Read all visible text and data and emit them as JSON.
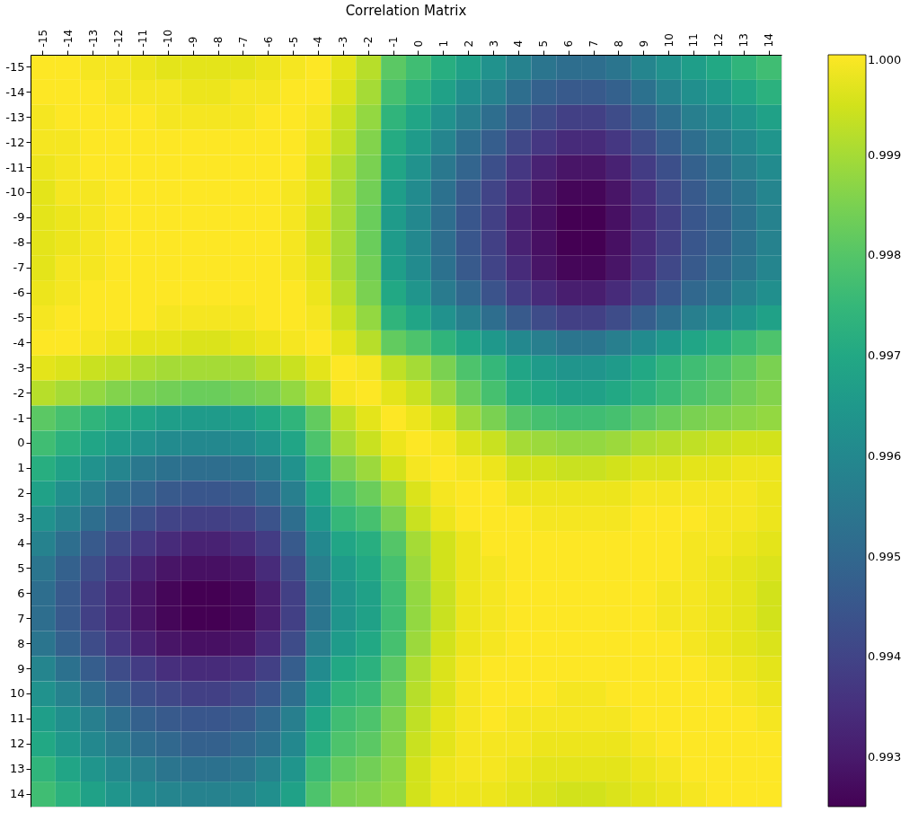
{
  "chart_data": {
    "type": "heatmap",
    "title": "Correlation Matrix",
    "categories": [
      "-15",
      "-14",
      "-13",
      "-12",
      "-11",
      "-10",
      "-9",
      "-8",
      "-7",
      "-6",
      "-5",
      "-4",
      "-3",
      "-2",
      "-1",
      "0",
      "1",
      "2",
      "3",
      "4",
      "5",
      "6",
      "7",
      "8",
      "9",
      "10",
      "11",
      "12",
      "13",
      "14"
    ],
    "y_categories": [
      "-15",
      "-14",
      "-13",
      "-12",
      "-11",
      "-10",
      "-9",
      "-8",
      "-7",
      "-6",
      "-5",
      "-4",
      "-3",
      "-2",
      "-1",
      "0",
      "1",
      "2",
      "3",
      "4",
      "5",
      "6",
      "7",
      "8",
      "9",
      "10",
      "11",
      "12",
      "13",
      "14"
    ],
    "clim": [
      0.99251,
      1.0
    ],
    "cticks": [
      0.993,
      0.994,
      0.995,
      0.996,
      0.997,
      0.998,
      0.999,
      {
        "value": 1.0,
        "label": "1.000"
      }
    ],
    "cells": [
      [
        1.0,
        1.0,
        0.9999,
        0.9999,
        0.9998,
        0.9997,
        0.9997,
        0.9997,
        0.9997,
        0.9998,
        0.9999,
        1.0,
        0.9997,
        0.9992,
        0.9981,
        0.9977,
        0.9972,
        0.9968,
        0.9963,
        0.9958,
        0.9954,
        0.9952,
        0.9952,
        0.9954,
        0.9959,
        0.9963,
        0.9967,
        0.997,
        0.9974,
        0.9977
      ],
      [
        1.0,
        1.0,
        1.0,
        0.9999,
        0.9999,
        0.9999,
        0.9998,
        0.9998,
        0.9999,
        0.9999,
        1.0,
        1.0,
        0.9996,
        0.999,
        0.9978,
        0.9973,
        0.9968,
        0.9962,
        0.9958,
        0.9952,
        0.9948,
        0.9946,
        0.9946,
        0.9948,
        0.9953,
        0.9958,
        0.9962,
        0.9965,
        0.9969,
        0.9973
      ],
      [
        0.9999,
        1.0,
        1.0,
        1.0,
        1.0,
        0.9999,
        0.9999,
        0.9999,
        0.9999,
        1.0,
        1.0,
        0.9999,
        0.9994,
        0.9988,
        0.9974,
        0.9969,
        0.9963,
        0.9957,
        0.9952,
        0.9946,
        0.9942,
        0.9939,
        0.9939,
        0.9942,
        0.9947,
        0.9952,
        0.9957,
        0.996,
        0.9964,
        0.9968
      ],
      [
        0.9999,
        0.9999,
        1.0,
        1.0,
        1.0,
        1.0,
        1.0,
        1.0,
        1.0,
        1.0,
        1.0,
        0.9998,
        0.9993,
        0.9986,
        0.9971,
        0.9966,
        0.9959,
        0.9952,
        0.9947,
        0.9941,
        0.9937,
        0.9934,
        0.9934,
        0.9937,
        0.9942,
        0.9947,
        0.9952,
        0.9956,
        0.996,
        0.9964
      ],
      [
        0.9998,
        0.9999,
        1.0,
        1.0,
        1.0,
        1.0,
        1.0,
        1.0,
        1.0,
        1.0,
        1.0,
        0.9997,
        0.9991,
        0.9985,
        0.9969,
        0.9963,
        0.9955,
        0.9949,
        0.9943,
        0.9937,
        0.9932,
        0.9929,
        0.9929,
        0.9932,
        0.9938,
        0.9943,
        0.9948,
        0.9952,
        0.9957,
        0.9961
      ],
      [
        0.9997,
        0.9999,
        0.9999,
        1.0,
        1.0,
        1.0,
        1.0,
        1.0,
        1.0,
        1.0,
        0.9999,
        0.9997,
        0.999,
        0.9984,
        0.9967,
        0.9961,
        0.9953,
        0.9946,
        0.994,
        0.9934,
        0.9929,
        0.9926,
        0.9926,
        0.9929,
        0.9935,
        0.9941,
        0.9946,
        0.995,
        0.9954,
        0.9959
      ],
      [
        0.9997,
        0.9998,
        0.9999,
        1.0,
        1.0,
        1.0,
        1.0,
        1.0,
        1.0,
        1.0,
        0.9999,
        0.9996,
        0.999,
        0.9983,
        0.9966,
        0.996,
        0.9952,
        0.9945,
        0.9939,
        0.9932,
        0.9928,
        0.9925,
        0.9925,
        0.9928,
        0.9934,
        0.9939,
        0.9945,
        0.9948,
        0.9953,
        0.9958
      ],
      [
        0.9997,
        0.9998,
        0.9999,
        1.0,
        1.0,
        1.0,
        1.0,
        1.0,
        1.0,
        1.0,
        0.9999,
        0.9996,
        0.999,
        0.9983,
        0.9966,
        0.996,
        0.9952,
        0.9945,
        0.9939,
        0.9932,
        0.9928,
        0.9925,
        0.9925,
        0.9928,
        0.9934,
        0.9939,
        0.9945,
        0.9948,
        0.9953,
        0.9958
      ],
      [
        0.9997,
        0.9999,
        0.9999,
        1.0,
        1.0,
        1.0,
        1.0,
        1.0,
        1.0,
        1.0,
        0.9999,
        0.9997,
        0.999,
        0.9984,
        0.9967,
        0.9961,
        0.9953,
        0.9946,
        0.994,
        0.9934,
        0.9929,
        0.9926,
        0.9926,
        0.9929,
        0.9935,
        0.9941,
        0.9946,
        0.995,
        0.9954,
        0.9959
      ],
      [
        0.9998,
        0.9999,
        1.0,
        1.0,
        1.0,
        1.0,
        1.0,
        1.0,
        1.0,
        1.0,
        1.0,
        0.9998,
        0.9992,
        0.9985,
        0.997,
        0.9964,
        0.9956,
        0.995,
        0.9944,
        0.9938,
        0.9934,
        0.9931,
        0.9931,
        0.9934,
        0.9939,
        0.9945,
        0.995,
        0.9953,
        0.9958,
        0.9962
      ],
      [
        0.9999,
        1.0,
        1.0,
        1.0,
        1.0,
        0.9999,
        0.9999,
        0.9999,
        0.9999,
        1.0,
        1.0,
        0.9999,
        0.9994,
        0.9988,
        0.9974,
        0.9969,
        0.9963,
        0.9957,
        0.9952,
        0.9946,
        0.9942,
        0.9939,
        0.9939,
        0.9942,
        0.9947,
        0.9952,
        0.9957,
        0.996,
        0.9964,
        0.9968
      ],
      [
        1.0,
        1.0,
        0.9999,
        0.9998,
        0.9997,
        0.9997,
        0.9996,
        0.9996,
        0.9997,
        0.9998,
        0.9999,
        1.0,
        0.9997,
        0.9992,
        0.9982,
        0.9979,
        0.9974,
        0.9969,
        0.9965,
        0.996,
        0.9957,
        0.9954,
        0.9954,
        0.9957,
        0.9961,
        0.9965,
        0.9969,
        0.9972,
        0.9976,
        0.9979
      ],
      [
        0.9997,
        0.9996,
        0.9994,
        0.9993,
        0.9991,
        0.999,
        0.999,
        0.999,
        0.999,
        0.9992,
        0.9994,
        0.9997,
        1.0,
        0.9999,
        0.9993,
        0.999,
        0.9985,
        0.9979,
        0.9975,
        0.9969,
        0.9966,
        0.9964,
        0.9964,
        0.9966,
        0.997,
        0.9974,
        0.9977,
        0.9979,
        0.9982,
        0.9985
      ],
      [
        0.9992,
        0.999,
        0.9988,
        0.9986,
        0.9985,
        0.9984,
        0.9983,
        0.9983,
        0.9984,
        0.9985,
        0.9988,
        0.9992,
        0.9999,
        1.0,
        0.9997,
        0.9994,
        0.9989,
        0.9983,
        0.9978,
        0.9972,
        0.997,
        0.9968,
        0.9968,
        0.997,
        0.9973,
        0.9976,
        0.9979,
        0.9981,
        0.9984,
        0.9986
      ],
      [
        0.9981,
        0.9978,
        0.9974,
        0.9971,
        0.9969,
        0.9967,
        0.9966,
        0.9966,
        0.9967,
        0.997,
        0.9974,
        0.9982,
        0.9993,
        0.9997,
        1.0,
        0.9998,
        0.9995,
        0.9989,
        0.9985,
        0.998,
        0.9978,
        0.9977,
        0.9977,
        0.9978,
        0.9981,
        0.9983,
        0.9985,
        0.9986,
        0.9987,
        0.9988
      ],
      [
        0.9977,
        0.9973,
        0.9969,
        0.9966,
        0.9963,
        0.9961,
        0.996,
        0.996,
        0.9961,
        0.9964,
        0.9969,
        0.9979,
        0.999,
        0.9994,
        0.9998,
        1.0,
        0.9999,
        0.9996,
        0.9994,
        0.999,
        0.9989,
        0.9988,
        0.9988,
        0.9989,
        0.9991,
        0.9992,
        0.9993,
        0.9994,
        0.9995,
        0.9995
      ],
      [
        0.9972,
        0.9968,
        0.9963,
        0.9959,
        0.9955,
        0.9953,
        0.9952,
        0.9952,
        0.9953,
        0.9956,
        0.9963,
        0.9974,
        0.9985,
        0.9989,
        0.9995,
        0.9999,
        1.0,
        0.9999,
        0.9998,
        0.9995,
        0.9995,
        0.9994,
        0.9994,
        0.9995,
        0.9996,
        0.9996,
        0.9997,
        0.9997,
        0.9998,
        0.9998
      ],
      [
        0.9968,
        0.9962,
        0.9957,
        0.9952,
        0.9949,
        0.9946,
        0.9945,
        0.9945,
        0.9946,
        0.995,
        0.9957,
        0.9969,
        0.9979,
        0.9983,
        0.9989,
        0.9996,
        0.9999,
        1.0,
        1.0,
        0.9998,
        0.9998,
        0.9998,
        0.9998,
        0.9998,
        0.9999,
        0.9999,
        0.9999,
        0.9999,
        0.9999,
        0.9998
      ],
      [
        0.9963,
        0.9958,
        0.9952,
        0.9947,
        0.9943,
        0.994,
        0.9939,
        0.9939,
        0.994,
        0.9944,
        0.9952,
        0.9965,
        0.9975,
        0.9978,
        0.9985,
        0.9994,
        0.9998,
        1.0,
        1.0,
        1.0,
        0.9999,
        0.9999,
        0.9999,
        0.9999,
        1.0,
        1.0,
        1.0,
        0.9999,
        0.9999,
        0.9998
      ],
      [
        0.9958,
        0.9952,
        0.9946,
        0.9941,
        0.9937,
        0.9934,
        0.9932,
        0.9932,
        0.9934,
        0.9938,
        0.9946,
        0.996,
        0.9969,
        0.9972,
        0.998,
        0.999,
        0.9995,
        0.9998,
        1.0,
        1.0,
        1.0,
        1.0,
        1.0,
        1.0,
        1.0,
        1.0,
        0.9999,
        0.9999,
        0.9998,
        0.9997
      ],
      [
        0.9954,
        0.9948,
        0.9942,
        0.9937,
        0.9932,
        0.9929,
        0.9928,
        0.9928,
        0.9929,
        0.9934,
        0.9942,
        0.9957,
        0.9966,
        0.997,
        0.9978,
        0.9989,
        0.9995,
        0.9998,
        0.9999,
        1.0,
        1.0,
        1.0,
        1.0,
        1.0,
        1.0,
        1.0,
        0.9999,
        0.9998,
        0.9997,
        0.9996
      ],
      [
        0.9952,
        0.9946,
        0.9939,
        0.9934,
        0.9929,
        0.9926,
        0.9925,
        0.9925,
        0.9926,
        0.9931,
        0.9939,
        0.9954,
        0.9964,
        0.9968,
        0.9977,
        0.9988,
        0.9994,
        0.9998,
        0.9999,
        1.0,
        1.0,
        1.0,
        1.0,
        1.0,
        1.0,
        0.9999,
        0.9999,
        0.9998,
        0.9997,
        0.9995
      ],
      [
        0.9952,
        0.9946,
        0.9939,
        0.9934,
        0.9929,
        0.9926,
        0.9925,
        0.9925,
        0.9926,
        0.9931,
        0.9939,
        0.9954,
        0.9964,
        0.9968,
        0.9977,
        0.9988,
        0.9994,
        0.9998,
        0.9999,
        1.0,
        1.0,
        1.0,
        1.0,
        1.0,
        1.0,
        0.9999,
        0.9999,
        0.9998,
        0.9997,
        0.9995
      ],
      [
        0.9954,
        0.9948,
        0.9942,
        0.9937,
        0.9932,
        0.9929,
        0.9928,
        0.9928,
        0.9929,
        0.9934,
        0.9942,
        0.9957,
        0.9966,
        0.997,
        0.9978,
        0.9989,
        0.9995,
        0.9998,
        0.9999,
        1.0,
        1.0,
        1.0,
        1.0,
        1.0,
        1.0,
        1.0,
        0.9999,
        0.9998,
        0.9997,
        0.9996
      ],
      [
        0.9959,
        0.9953,
        0.9947,
        0.9942,
        0.9938,
        0.9935,
        0.9934,
        0.9934,
        0.9935,
        0.9939,
        0.9947,
        0.9961,
        0.997,
        0.9973,
        0.9981,
        0.9991,
        0.9996,
        0.9999,
        1.0,
        1.0,
        1.0,
        1.0,
        1.0,
        1.0,
        1.0,
        1.0,
        1.0,
        0.9999,
        0.9998,
        0.9997
      ],
      [
        0.9963,
        0.9958,
        0.9952,
        0.9947,
        0.9943,
        0.9941,
        0.9939,
        0.9939,
        0.9941,
        0.9945,
        0.9952,
        0.9965,
        0.9974,
        0.9976,
        0.9983,
        0.9992,
        0.9996,
        0.9999,
        1.0,
        1.0,
        1.0,
        0.9999,
        0.9999,
        1.0,
        1.0,
        1.0,
        1.0,
        1.0,
        0.9999,
        0.9998
      ],
      [
        0.9967,
        0.9962,
        0.9957,
        0.9952,
        0.9948,
        0.9946,
        0.9945,
        0.9945,
        0.9946,
        0.995,
        0.9957,
        0.9969,
        0.9977,
        0.9979,
        0.9985,
        0.9993,
        0.9997,
        0.9999,
        1.0,
        0.9999,
        0.9999,
        0.9999,
        0.9999,
        0.9999,
        1.0,
        1.0,
        1.0,
        1.0,
        1.0,
        0.9999
      ],
      [
        0.997,
        0.9965,
        0.996,
        0.9956,
        0.9952,
        0.995,
        0.9948,
        0.9948,
        0.995,
        0.9953,
        0.996,
        0.9972,
        0.9979,
        0.9981,
        0.9986,
        0.9994,
        0.9997,
        0.9999,
        0.9999,
        0.9999,
        0.9998,
        0.9998,
        0.9998,
        0.9998,
        0.9999,
        1.0,
        1.0,
        1.0,
        1.0,
        1.0
      ],
      [
        0.9974,
        0.9969,
        0.9964,
        0.996,
        0.9957,
        0.9954,
        0.9953,
        0.9953,
        0.9954,
        0.9958,
        0.9964,
        0.9976,
        0.9982,
        0.9984,
        0.9987,
        0.9995,
        0.9998,
        0.9999,
        0.9999,
        0.9998,
        0.9997,
        0.9997,
        0.9997,
        0.9997,
        0.9998,
        0.9999,
        1.0,
        1.0,
        1.0,
        1.0
      ],
      [
        0.9977,
        0.9973,
        0.9968,
        0.9964,
        0.9961,
        0.9959,
        0.9958,
        0.9958,
        0.9959,
        0.9962,
        0.9968,
        0.9979,
        0.9985,
        0.9986,
        0.9988,
        0.9995,
        0.9998,
        0.9998,
        0.9998,
        0.9997,
        0.9996,
        0.9995,
        0.9995,
        0.9996,
        0.9997,
        0.9998,
        0.9999,
        1.0,
        1.0,
        1.0
      ]
    ]
  }
}
